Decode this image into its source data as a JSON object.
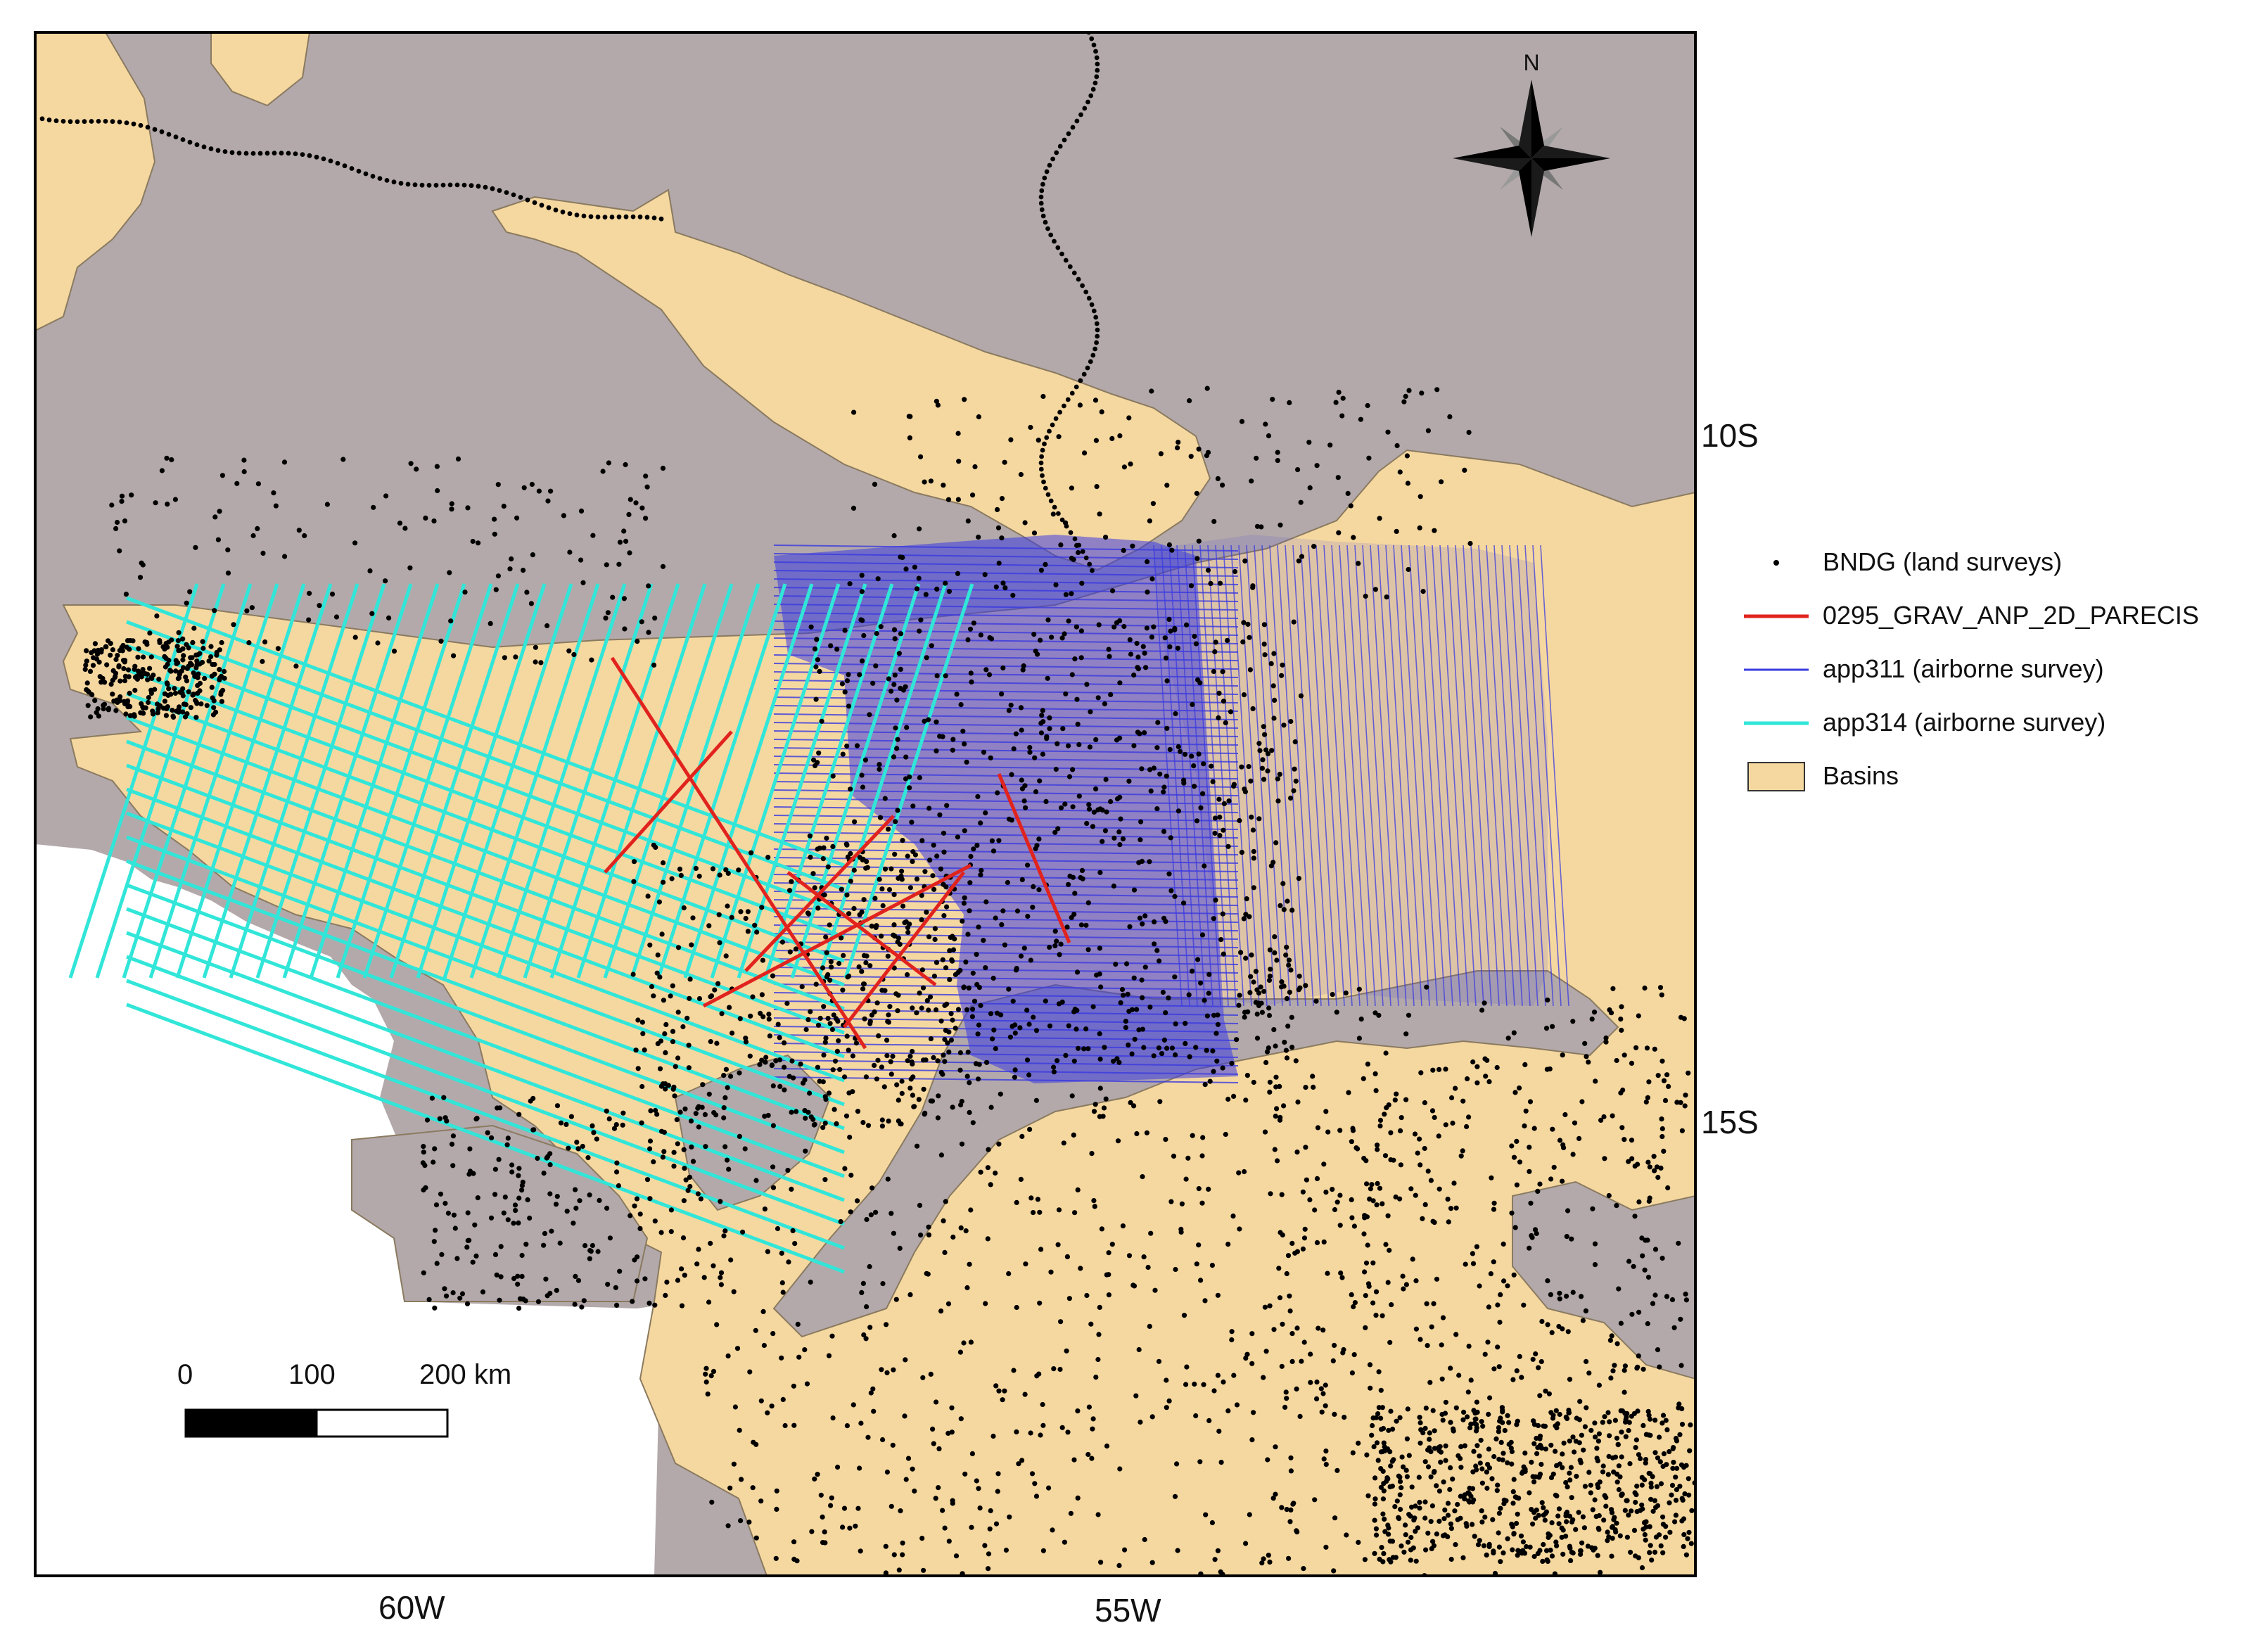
{
  "map": {
    "north_label": "N",
    "lat_labels": [
      "10S",
      "15S"
    ],
    "lon_labels": [
      "60W",
      "55W"
    ],
    "scale_bar": {
      "labels": [
        "0",
        "100",
        "200 km"
      ]
    },
    "colors": {
      "background_region": "#b3a9aa",
      "basins": "#f5d8a0",
      "land_points": "#000000",
      "grav_2d": "#e1231e",
      "app311": "#3a3ae0",
      "app314": "#31e6d8",
      "frame": "#000000"
    }
  },
  "legend": {
    "items": [
      {
        "label": "BNDG (land surveys)",
        "symbol": "dot"
      },
      {
        "label": "0295_GRAV_ANP_2D_PARECIS",
        "symbol": "red-line"
      },
      {
        "label": "app311 (airborne survey)",
        "symbol": "blue-line"
      },
      {
        "label": "app314 (airborne survey)",
        "symbol": "cyan-line"
      },
      {
        "label": "Basins",
        "symbol": "basin-box"
      }
    ]
  }
}
